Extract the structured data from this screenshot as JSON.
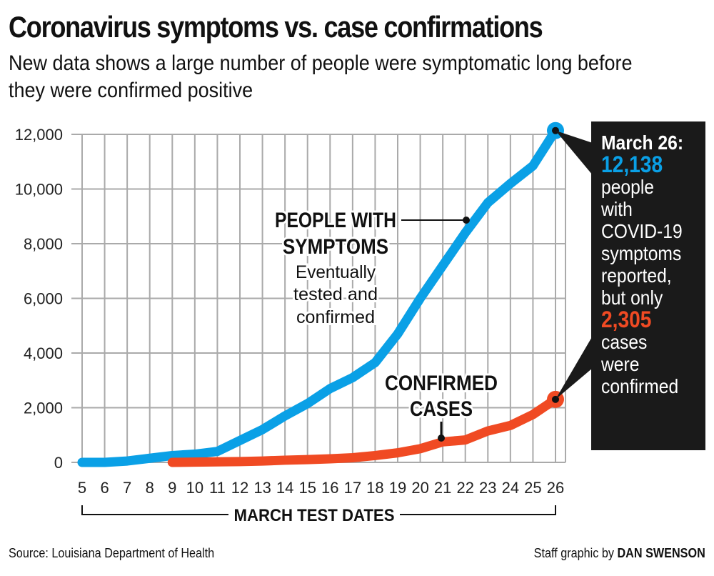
{
  "title": "Coronavirus symptoms vs. case confirmations",
  "subtitle": "New data shows a large number of people were symptomatic long before they were confirmed positive",
  "source": "Source: Louisiana Department of Health",
  "credit_prefix": "Staff graphic by",
  "credit_name": "DAN SWENSON",
  "colors": {
    "symptoms": "#0aa0e6",
    "confirmed": "#f04a23",
    "callout_bg": "#1a1a1a"
  },
  "callout": {
    "lines": [
      "March 26:",
      "12,138",
      "people",
      "with",
      "COVID-19",
      "symptoms",
      "reported,",
      "but only",
      "2,305",
      "cases",
      "were",
      "confirmed"
    ]
  },
  "chart_data": {
    "type": "line",
    "title": "Coronavirus symptoms vs. case confirmations",
    "xlabel": "MARCH TEST DATES",
    "ylabel": "",
    "x": [
      5,
      6,
      7,
      8,
      9,
      10,
      11,
      12,
      13,
      14,
      15,
      16,
      17,
      18,
      19,
      20,
      21,
      22,
      23,
      24,
      25,
      26
    ],
    "xlim": [
      5,
      26
    ],
    "ylim": [
      0,
      12000
    ],
    "yticks": [
      0,
      2000,
      4000,
      6000,
      8000,
      10000,
      12000
    ],
    "ytick_labels": [
      "0",
      "2,000",
      "4,000",
      "6,000",
      "8,000",
      "10,000",
      "12,000"
    ],
    "grid": true,
    "series": [
      {
        "name": "PEOPLE WITH SYMPTOMS",
        "note": "Eventually tested and confirmed",
        "color": "#0aa0e6",
        "x": [
          5,
          6,
          7,
          8,
          9,
          10,
          11,
          12,
          13,
          14,
          15,
          16,
          17,
          18,
          19,
          20,
          21,
          22,
          23,
          24,
          25,
          26
        ],
        "values": [
          0,
          0,
          50,
          150,
          250,
          300,
          400,
          800,
          1200,
          1700,
          2150,
          2700,
          3100,
          3650,
          4700,
          6000,
          7200,
          8400,
          9500,
          10200,
          10850,
          12138
        ]
      },
      {
        "name": "CONFIRMED CASES",
        "color": "#f04a23",
        "x": [
          9,
          10,
          11,
          12,
          13,
          14,
          15,
          16,
          17,
          18,
          19,
          20,
          21,
          22,
          23,
          24,
          25,
          26
        ],
        "values": [
          0,
          10,
          20,
          30,
          50,
          80,
          100,
          130,
          170,
          250,
          350,
          500,
          750,
          820,
          1150,
          1350,
          1750,
          2305
        ]
      }
    ]
  }
}
